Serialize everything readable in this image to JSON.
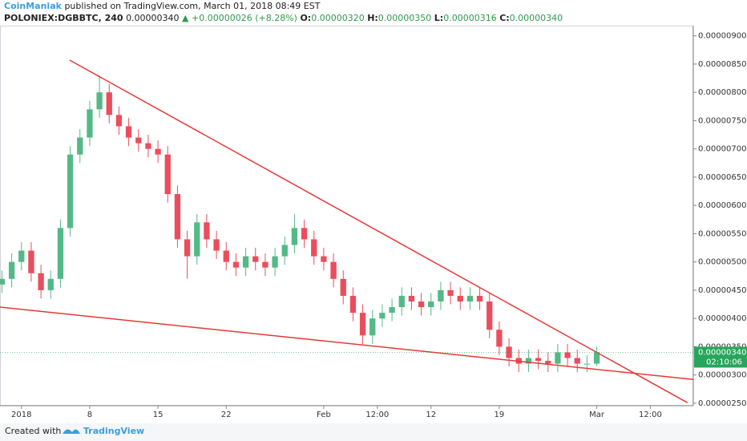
{
  "header": {
    "author": "CoinManiak",
    "published": "published on TradingView.com, March 01, 2018 08:49 EST",
    "symbol": "POLONIEX:DGBBTC, 240",
    "last": "0.00000340",
    "change": "▲ +0.00000026 (+8.28%)",
    "ohlc": [
      {
        "key": "O:",
        "value": "0.00000320"
      },
      {
        "key": "H:",
        "value": "0.00000350"
      },
      {
        "key": "L:",
        "value": "0.00000316"
      },
      {
        "key": "C:",
        "value": "0.00000340"
      }
    ]
  },
  "footer": {
    "created": "Created with",
    "brand": "TradingView"
  },
  "chart_data": {
    "type": "candlestick",
    "x": [
      -2,
      -1,
      0,
      1,
      2,
      3,
      4,
      5,
      6,
      7,
      8,
      9,
      10,
      11,
      12,
      13,
      14,
      15,
      16,
      17,
      18,
      19,
      20,
      21,
      22,
      23,
      24,
      25,
      26,
      27,
      28,
      29,
      30,
      31,
      32,
      33,
      34,
      35,
      36,
      37,
      38,
      39,
      40,
      41,
      42,
      43,
      44,
      45,
      46,
      47,
      48,
      49,
      50,
      51,
      52,
      53,
      54,
      55,
      56,
      57,
      58,
      59
    ],
    "open": [
      4.6e-06,
      4.7e-06,
      5e-06,
      5.2e-06,
      4.8e-06,
      4.5e-06,
      4.7e-06,
      5.6e-06,
      6.9e-06,
      7.2e-06,
      7.7e-06,
      8e-06,
      7.6e-06,
      7.4e-06,
      7.2e-06,
      7.1e-06,
      7e-06,
      6.9e-06,
      6.2e-06,
      5.4e-06,
      5.1e-06,
      5.7e-06,
      5.4e-06,
      5.2e-06,
      5e-06,
      4.9e-06,
      5.1e-06,
      5e-06,
      4.9e-06,
      5.1e-06,
      5.3e-06,
      5.6e-06,
      5.4e-06,
      5.1e-06,
      5e-06,
      4.7e-06,
      4.4e-06,
      4.1e-06,
      3.7e-06,
      4e-06,
      4.1e-06,
      4.2e-06,
      4.4e-06,
      4.3e-06,
      4.2e-06,
      4.3e-06,
      4.5e-06,
      4.4e-06,
      4.3e-06,
      4.4e-06,
      4.3e-06,
      3.8e-06,
      3.5e-06,
      3.3e-06,
      3.2e-06,
      3.3e-06,
      3.25e-06,
      3.2e-06,
      3.4e-06,
      3.3e-06,
      3.2e-06,
      3.2e-06
    ],
    "high": [
      4.85e-06,
      5.15e-06,
      5.35e-06,
      5.35e-06,
      4.95e-06,
      4.85e-06,
      5.75e-06,
      7.05e-06,
      7.35e-06,
      7.85e-06,
      8.3e-06,
      8.15e-06,
      7.75e-06,
      7.55e-06,
      7.35e-06,
      7.25e-06,
      7.15e-06,
      7.05e-06,
      6.35e-06,
      5.55e-06,
      5.85e-06,
      5.85e-06,
      5.55e-06,
      5.35e-06,
      5.15e-06,
      5.25e-06,
      5.25e-06,
      5.15e-06,
      5.25e-06,
      5.45e-06,
      5.85e-06,
      5.75e-06,
      5.55e-06,
      5.25e-06,
      5.15e-06,
      4.85e-06,
      4.55e-06,
      4.25e-06,
      4.15e-06,
      4.25e-06,
      4.35e-06,
      4.55e-06,
      4.55e-06,
      4.45e-06,
      4.45e-06,
      4.65e-06,
      4.65e-06,
      4.55e-06,
      4.55e-06,
      4.55e-06,
      4.45e-06,
      3.95e-06,
      3.65e-06,
      3.45e-06,
      3.45e-06,
      3.45e-06,
      3.4e-06,
      3.55e-06,
      3.55e-06,
      3.45e-06,
      3.35e-06,
      3.5e-06
    ],
    "low": [
      4.45e-06,
      4.55e-06,
      4.85e-06,
      4.65e-06,
      4.35e-06,
      4.35e-06,
      4.55e-06,
      5.45e-06,
      6.75e-06,
      7.05e-06,
      7.55e-06,
      7.45e-06,
      7.25e-06,
      7.05e-06,
      6.95e-06,
      6.85e-06,
      6.75e-06,
      6.05e-06,
      5.25e-06,
      4.7e-06,
      4.95e-06,
      5.25e-06,
      5.05e-06,
      4.85e-06,
      4.75e-06,
      4.75e-06,
      4.85e-06,
      4.75e-06,
      4.75e-06,
      4.95e-06,
      5.15e-06,
      5.25e-06,
      4.95e-06,
      4.85e-06,
      4.55e-06,
      4.25e-06,
      3.95e-06,
      3.55e-06,
      3.55e-06,
      3.85e-06,
      3.95e-06,
      4.05e-06,
      4.15e-06,
      4.05e-06,
      4.05e-06,
      4.15e-06,
      4.25e-06,
      4.15e-06,
      4.15e-06,
      4.15e-06,
      3.65e-06,
      3.35e-06,
      3.15e-06,
      3.05e-06,
      3.05e-06,
      3.1e-06,
      3.05e-06,
      3.05e-06,
      3.15e-06,
      3.05e-06,
      3.05e-06,
      3.16e-06
    ],
    "close": [
      4.7e-06,
      5e-06,
      5.2e-06,
      4.8e-06,
      4.5e-06,
      4.7e-06,
      5.6e-06,
      6.9e-06,
      7.2e-06,
      7.7e-06,
      8e-06,
      7.6e-06,
      7.4e-06,
      7.2e-06,
      7.1e-06,
      7e-06,
      6.9e-06,
      6.2e-06,
      5.4e-06,
      5.1e-06,
      5.7e-06,
      5.4e-06,
      5.2e-06,
      5e-06,
      4.9e-06,
      5.1e-06,
      5e-06,
      4.9e-06,
      5.1e-06,
      5.3e-06,
      5.6e-06,
      5.4e-06,
      5.1e-06,
      5e-06,
      4.7e-06,
      4.4e-06,
      4.1e-06,
      3.7e-06,
      4e-06,
      4.1e-06,
      4.2e-06,
      4.4e-06,
      4.3e-06,
      4.2e-06,
      4.3e-06,
      4.5e-06,
      4.4e-06,
      4.3e-06,
      4.4e-06,
      4.3e-06,
      3.8e-06,
      3.5e-06,
      3.3e-06,
      3.2e-06,
      3.3e-06,
      3.25e-06,
      3.2e-06,
      3.4e-06,
      3.3e-06,
      3.2e-06,
      3.2e-06,
      3.4e-06
    ],
    "up_color": "#53b987",
    "down_color": "#eb4d5c",
    "xlim": [
      -2.2,
      68.9
    ],
    "xticks": [
      {
        "value": 0,
        "label": "2018"
      },
      {
        "value": 7,
        "label": "8"
      },
      {
        "value": 14,
        "label": "15"
      },
      {
        "value": 21,
        "label": "22"
      },
      {
        "value": 31,
        "label": "Feb"
      },
      {
        "value": 36.5,
        "label": "12:00"
      },
      {
        "value": 42,
        "label": "12"
      },
      {
        "value": 49,
        "label": "19"
      },
      {
        "value": 59,
        "label": "Mar"
      },
      {
        "value": 64.5,
        "label": "12:00"
      }
    ],
    "ylim": [
      2.47e-06,
      9.18e-06
    ],
    "yticks": [
      {
        "value": 9e-06,
        "label": "0.00000900"
      },
      {
        "value": 8.5e-06,
        "label": "0.00000850"
      },
      {
        "value": 8e-06,
        "label": "0.00000800"
      },
      {
        "value": 7.5e-06,
        "label": "0.00000750"
      },
      {
        "value": 7e-06,
        "label": "0.00000700"
      },
      {
        "value": 6.5e-06,
        "label": "0.00000650"
      },
      {
        "value": 6e-06,
        "label": "0.00000600"
      },
      {
        "value": 5.5e-06,
        "label": "0.00000550"
      },
      {
        "value": 5e-06,
        "label": "0.00000500"
      },
      {
        "value": 4.5e-06,
        "label": "0.00000450"
      },
      {
        "value": 4e-06,
        "label": "0.00000400"
      },
      {
        "value": 3.5e-06,
        "label": "0.00000350"
      },
      {
        "value": 3e-06,
        "label": "0.00000300"
      },
      {
        "value": 2.5e-06,
        "label": "0.00000250"
      }
    ],
    "trend_lines": [
      {
        "color": "#e53935",
        "x": [
          4.95,
          68.3
        ],
        "y": [
          8.57e-06,
          2.51e-06
        ]
      },
      {
        "color": "#e53935",
        "x": [
          -2.2,
          68.9
        ],
        "y": [
          4.2e-06,
          2.92e-06
        ]
      }
    ],
    "last_price": {
      "value": 3.4e-06,
      "label": "0.00000340",
      "color": "#26a65b",
      "countdown": "02:10:06"
    }
  }
}
